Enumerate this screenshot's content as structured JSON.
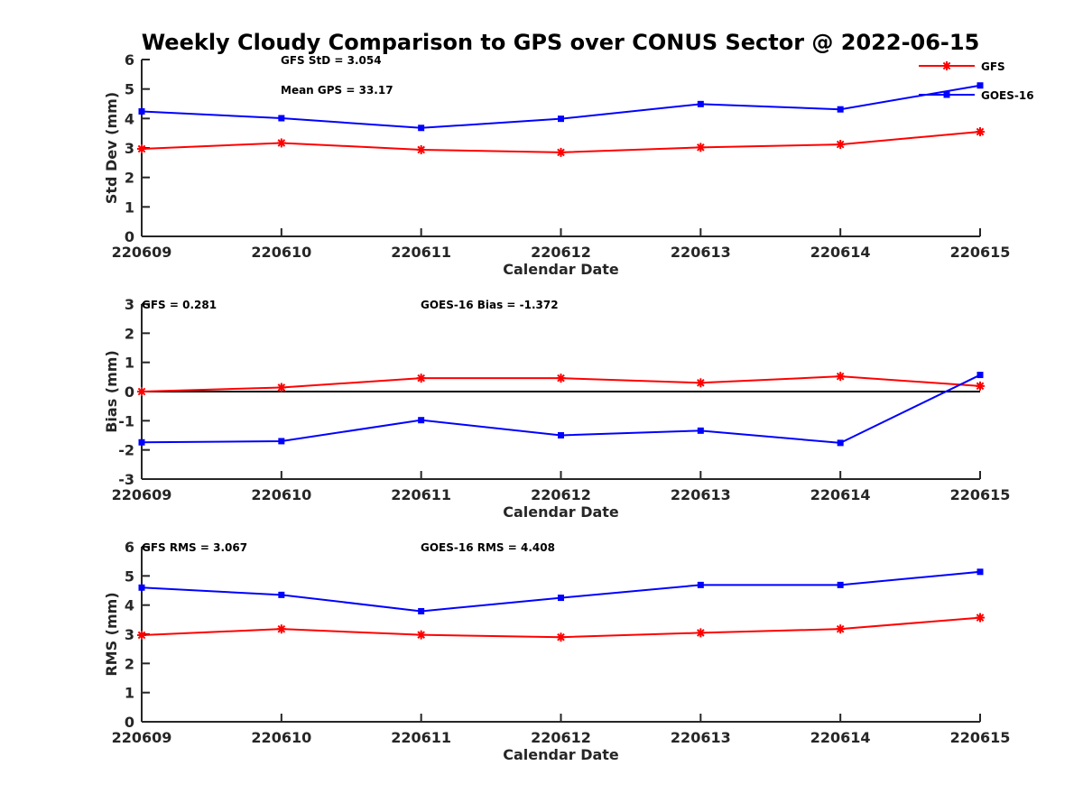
{
  "figure_title": "Weekly Cloudy Comparison to GPS over CONUS Sector @ 2022-06-15",
  "colors": {
    "GFS": "#ff0000",
    "GOES-16": "#0000ff",
    "axis": "#262626",
    "zero_line": "#000000"
  },
  "legend": {
    "placement": "top-right of first panel",
    "entries": [
      {
        "name": "GFS",
        "marker": "asterisk"
      },
      {
        "name": "GOES-16",
        "marker": "square"
      }
    ]
  },
  "chart_data": [
    {
      "type": "line",
      "xlabel": "Calendar Date",
      "ylabel": "Std Dev (mm)",
      "categories": [
        "220609",
        "220610",
        "220611",
        "220612",
        "220613",
        "220614",
        "220615"
      ],
      "ylim": [
        0,
        6
      ],
      "yticks": [
        0,
        1,
        2,
        3,
        4,
        5,
        6
      ],
      "zero_line": false,
      "annotations": [
        "GFS StD = 3.054",
        "Mean GPS = 33.17"
      ],
      "series": [
        {
          "name": "GFS",
          "values": [
            2.97,
            3.17,
            2.94,
            2.85,
            3.02,
            3.12,
            3.55
          ]
        },
        {
          "name": "GOES-16",
          "values": [
            4.24,
            4.01,
            3.68,
            3.99,
            4.49,
            4.31,
            5.12
          ]
        }
      ]
    },
    {
      "type": "line",
      "xlabel": "Calendar Date",
      "ylabel": "Bias (mm)",
      "categories": [
        "220609",
        "220610",
        "220611",
        "220612",
        "220613",
        "220614",
        "220615"
      ],
      "ylim": [
        -3,
        3
      ],
      "yticks": [
        -3,
        -2,
        -1,
        0,
        1,
        2,
        3
      ],
      "zero_line": true,
      "annotations": [
        "GFS = 0.281",
        "GOES-16 Bias  = -1.372"
      ],
      "series": [
        {
          "name": "GFS",
          "values": [
            0.0,
            0.14,
            0.46,
            0.46,
            0.3,
            0.52,
            0.19
          ]
        },
        {
          "name": "GOES-16",
          "values": [
            -1.74,
            -1.7,
            -0.98,
            -1.5,
            -1.34,
            -1.76,
            0.57
          ]
        }
      ]
    },
    {
      "type": "line",
      "xlabel": "Calendar Date",
      "ylabel": "RMS (mm)",
      "categories": [
        "220609",
        "220610",
        "220611",
        "220612",
        "220613",
        "220614",
        "220615"
      ],
      "ylim": [
        0,
        6
      ],
      "yticks": [
        0,
        1,
        2,
        3,
        4,
        5,
        6
      ],
      "zero_line": false,
      "annotations": [
        "GFS RMS = 3.067",
        "GOES-16 RMS = 4.408"
      ],
      "series": [
        {
          "name": "GFS",
          "values": [
            2.97,
            3.18,
            2.98,
            2.9,
            3.05,
            3.18,
            3.57
          ]
        },
        {
          "name": "GOES-16",
          "values": [
            4.6,
            4.35,
            3.79,
            4.25,
            4.69,
            4.69,
            5.14
          ]
        }
      ]
    }
  ]
}
